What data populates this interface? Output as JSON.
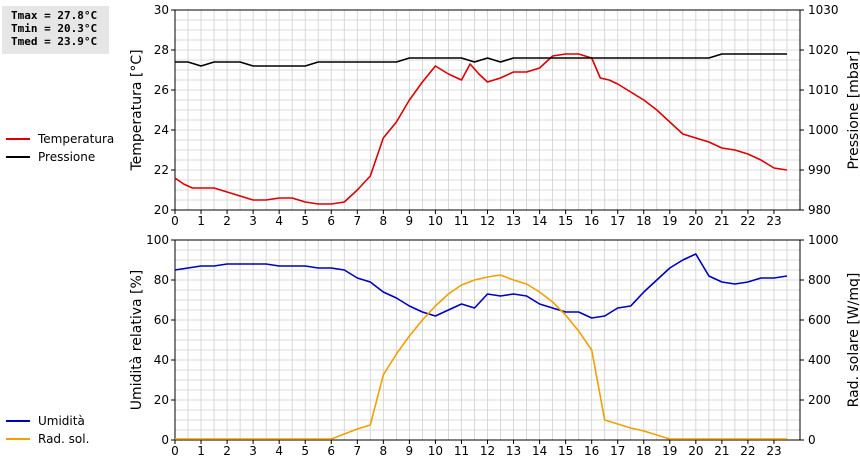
{
  "stats": {
    "tmax": "Tmax = 27.8°C",
    "tmin": "Tmin = 20.3°C",
    "tmed": "Tmed = 23.9°C"
  },
  "chart_data": [
    {
      "type": "line",
      "x_ticks": [
        "0",
        "1",
        "2",
        "3",
        "4",
        "5",
        "6",
        "7",
        "8",
        "9",
        "10",
        "11",
        "12",
        "13",
        "14",
        "15",
        "16",
        "17",
        "18",
        "19",
        "20",
        "21",
        "22",
        "23"
      ],
      "grid": true,
      "ylabel": "Temperatura [°C]",
      "ylabel_right": "Pressione [mbar]",
      "ylim": [
        20,
        30
      ],
      "ylim_right": [
        980,
        1030
      ],
      "y_ticks": [
        "20",
        "22",
        "24",
        "26",
        "28",
        "30"
      ],
      "y_ticks_right": [
        "980",
        "990",
        "1000",
        "1010",
        "1020",
        "1030"
      ],
      "legend_placement": "left",
      "series": [
        {
          "name": "Temperatura",
          "color": "#dd0000",
          "axis": "left",
          "x": [
            0,
            0.33,
            0.67,
            1,
            1.5,
            2,
            2.5,
            3,
            3.5,
            4,
            4.5,
            5,
            5.5,
            6,
            6.5,
            7,
            7.5,
            8,
            8.5,
            9,
            9.5,
            10,
            10.5,
            11,
            11.33,
            11.67,
            12,
            12.5,
            13,
            13.5,
            14,
            14.5,
            15,
            15.5,
            16,
            16.33,
            16.67,
            17,
            17.5,
            18,
            18.5,
            19,
            19.5,
            20,
            20.5,
            21,
            21.5,
            22,
            22.5,
            23,
            23.5
          ],
          "values": [
            21.6,
            21.3,
            21.1,
            21.1,
            21.1,
            20.9,
            20.7,
            20.5,
            20.5,
            20.6,
            20.6,
            20.4,
            20.3,
            20.3,
            20.4,
            21.0,
            21.7,
            23.6,
            24.4,
            25.5,
            26.4,
            27.2,
            26.8,
            26.5,
            27.3,
            26.8,
            26.4,
            26.6,
            26.9,
            26.9,
            27.1,
            27.7,
            27.8,
            27.8,
            27.6,
            26.6,
            26.5,
            26.3,
            25.9,
            25.5,
            25.0,
            24.4,
            23.8,
            23.6,
            23.4,
            23.1,
            23.0,
            22.8,
            22.5,
            22.1,
            22.0
          ]
        },
        {
          "name": "Pressione",
          "color": "#000000",
          "axis": "right",
          "x": [
            0,
            0.5,
            1,
            1.5,
            2,
            2.5,
            3,
            3.5,
            4,
            4.5,
            5,
            5.5,
            6,
            6.5,
            7,
            7.5,
            8,
            8.5,
            9,
            9.5,
            10,
            10.5,
            11,
            11.5,
            12,
            12.5,
            13,
            13.5,
            14,
            14.5,
            15,
            15.5,
            16,
            16.5,
            17,
            17.5,
            18,
            18.5,
            19,
            19.5,
            20,
            20.5,
            21,
            21.5,
            22,
            22.5,
            23,
            23.5
          ],
          "values": [
            1017,
            1017,
            1016,
            1017,
            1017,
            1017,
            1016,
            1016,
            1016,
            1016,
            1016,
            1017,
            1017,
            1017,
            1017,
            1017,
            1017,
            1017,
            1018,
            1018,
            1018,
            1018,
            1018,
            1017,
            1018,
            1017,
            1018,
            1018,
            1018,
            1018,
            1018,
            1018,
            1018,
            1018,
            1018,
            1018,
            1018,
            1018,
            1018,
            1018,
            1018,
            1018,
            1019,
            1019,
            1019,
            1019,
            1019,
            1019
          ]
        }
      ]
    },
    {
      "type": "line",
      "x_ticks": [
        "0",
        "1",
        "2",
        "3",
        "4",
        "5",
        "6",
        "7",
        "8",
        "9",
        "10",
        "11",
        "12",
        "13",
        "14",
        "15",
        "16",
        "17",
        "18",
        "19",
        "20",
        "21",
        "22",
        "23"
      ],
      "grid": true,
      "ylabel": "Umidità relativa [%]",
      "ylabel_right": "Rad. solare [W/mq]",
      "ylim": [
        0,
        100
      ],
      "ylim_right": [
        0,
        1000
      ],
      "y_ticks": [
        "0",
        "20",
        "40",
        "60",
        "80",
        "100"
      ],
      "y_ticks_right": [
        "0",
        "200",
        "400",
        "600",
        "800",
        "1000"
      ],
      "legend_placement": "left",
      "series": [
        {
          "name": "Umidità",
          "color": "#0000bb",
          "axis": "left",
          "x": [
            0,
            0.5,
            1,
            1.5,
            2,
            2.5,
            3,
            3.5,
            4,
            4.5,
            5,
            5.5,
            6,
            6.5,
            7,
            7.5,
            8,
            8.5,
            9,
            9.5,
            10,
            10.5,
            11,
            11.5,
            12,
            12.5,
            13,
            13.5,
            14,
            14.5,
            15,
            15.5,
            16,
            16.5,
            17,
            17.5,
            18,
            18.5,
            19,
            19.5,
            20,
            20.5,
            21,
            21.5,
            22,
            22.5,
            23,
            23.5
          ],
          "values": [
            85,
            86,
            87,
            87,
            88,
            88,
            88,
            88,
            87,
            87,
            87,
            86,
            86,
            85,
            81,
            79,
            74,
            71,
            67,
            64,
            62,
            65,
            68,
            66,
            73,
            72,
            73,
            72,
            68,
            66,
            64,
            64,
            61,
            62,
            66,
            67,
            74,
            80,
            86,
            90,
            93,
            82,
            79,
            78,
            79,
            81,
            81,
            82
          ]
        },
        {
          "name": "Rad. sol.",
          "color": "#f0a000",
          "axis": "right",
          "x": [
            0,
            1,
            2,
            3,
            4,
            5,
            6,
            6.5,
            7,
            7.5,
            8,
            8.5,
            9,
            9.5,
            10,
            10.5,
            11,
            11.5,
            12,
            12.5,
            13,
            13.5,
            14,
            14.5,
            15,
            15.5,
            16,
            16.5,
            17,
            17.5,
            18,
            18.5,
            19,
            19.5,
            20,
            21,
            22,
            23,
            23.5
          ],
          "values": [
            5,
            5,
            5,
            5,
            5,
            5,
            5,
            30,
            55,
            75,
            325,
            430,
            520,
            600,
            670,
            730,
            775,
            800,
            815,
            825,
            800,
            780,
            740,
            690,
            625,
            545,
            450,
            100,
            80,
            60,
            45,
            25,
            5,
            5,
            5,
            5,
            5,
            5,
            5
          ]
        }
      ]
    }
  ]
}
